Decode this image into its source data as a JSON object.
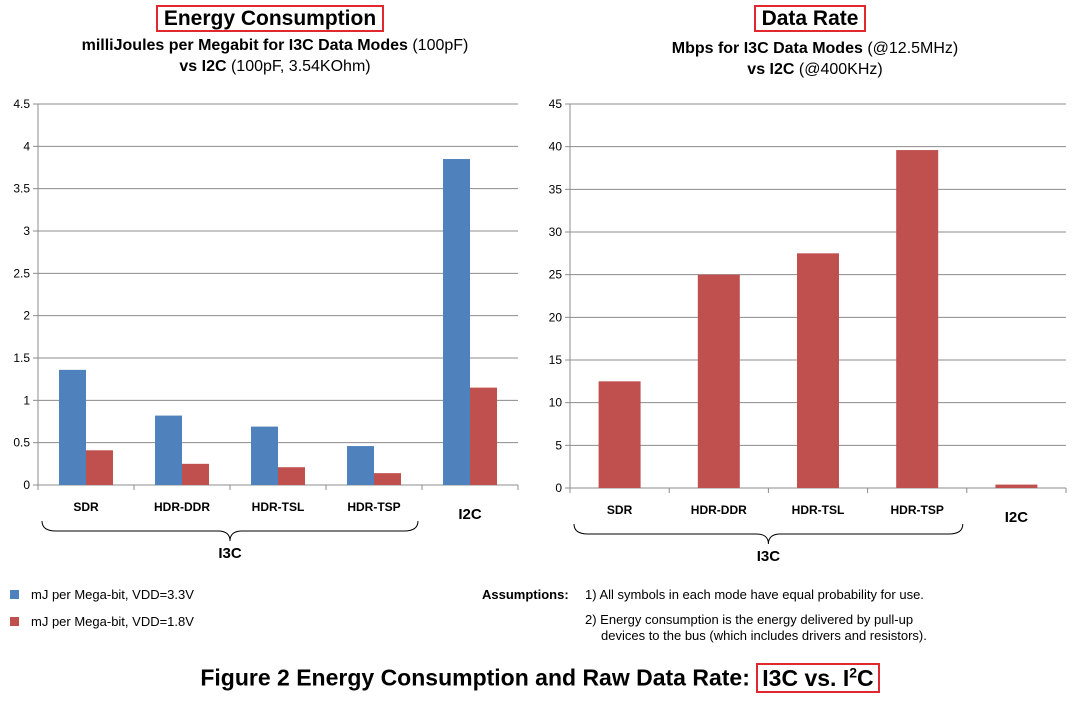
{
  "left": {
    "title": "Energy Consumption",
    "sub1_bold": "milliJoules per Megabit for I3C Data Modes",
    "sub1_rest": " (100pF)",
    "sub2_bold": "vs I2C",
    "sub2_rest": " (100pF, 3.54KOhm)"
  },
  "right": {
    "title": "Data Rate",
    "sub1_bold": "Mbps for I3C Data Modes",
    "sub1_rest": " (@12.5MHz)",
    "sub2_bold": "vs I2C",
    "sub2_rest": " (@400KHz)"
  },
  "colors": {
    "blue": "#4f81bd",
    "red": "#c0504d",
    "box": "#e0282e"
  },
  "chart_data": [
    {
      "type": "bar",
      "title": "Energy Consumption",
      "categories": [
        "SDR",
        "HDR-DDR",
        "HDR-TSL",
        "HDR-TSP",
        "I2C"
      ],
      "group_label": "I3C",
      "ylim": [
        0,
        4.5
      ],
      "yticks": [
        "0",
        "0.5",
        "1",
        "1.5",
        "2",
        "2.5",
        "3",
        "3.5",
        "4",
        "4.5"
      ],
      "series": [
        {
          "name": "mJ per Mega-bit, VDD=3.3V",
          "color": "#4f81bd",
          "values": [
            1.36,
            0.82,
            0.69,
            0.46,
            3.85
          ]
        },
        {
          "name": "mJ per Mega-bit, VDD=1.8V",
          "color": "#c0504d",
          "values": [
            0.41,
            0.25,
            0.21,
            0.14,
            1.15
          ]
        }
      ]
    },
    {
      "type": "bar",
      "title": "Data Rate",
      "categories": [
        "SDR",
        "HDR-DDR",
        "HDR-TSL",
        "HDR-TSP",
        "I2C"
      ],
      "group_label": "I3C",
      "ylim": [
        0,
        45
      ],
      "yticks": [
        "0",
        "5",
        "10",
        "15",
        "20",
        "25",
        "30",
        "35",
        "40",
        "45"
      ],
      "series": [
        {
          "color": "#c0504d",
          "values": [
            12.5,
            25,
            27.5,
            39.6,
            0.4
          ]
        }
      ]
    }
  ],
  "legend": [
    {
      "label": "mJ per Mega-bit, VDD=3.3V",
      "color": "#4f81bd"
    },
    {
      "label": "mJ per Mega-bit, VDD=1.8V",
      "color": "#c0504d"
    }
  ],
  "assumptions": {
    "heading": "Assumptions:",
    "items": [
      "1) All symbols in each mode have equal probability for use.",
      "2) Energy consumption is the energy delivered by pull-up",
      "devices to the bus (which includes drivers and resistors)."
    ]
  },
  "caption": {
    "pre": "Figure 2 Energy Consumption and Raw Data Rate: ",
    "boxed_a": "I3C vs. I",
    "sup": "2",
    "boxed_b": "C"
  }
}
